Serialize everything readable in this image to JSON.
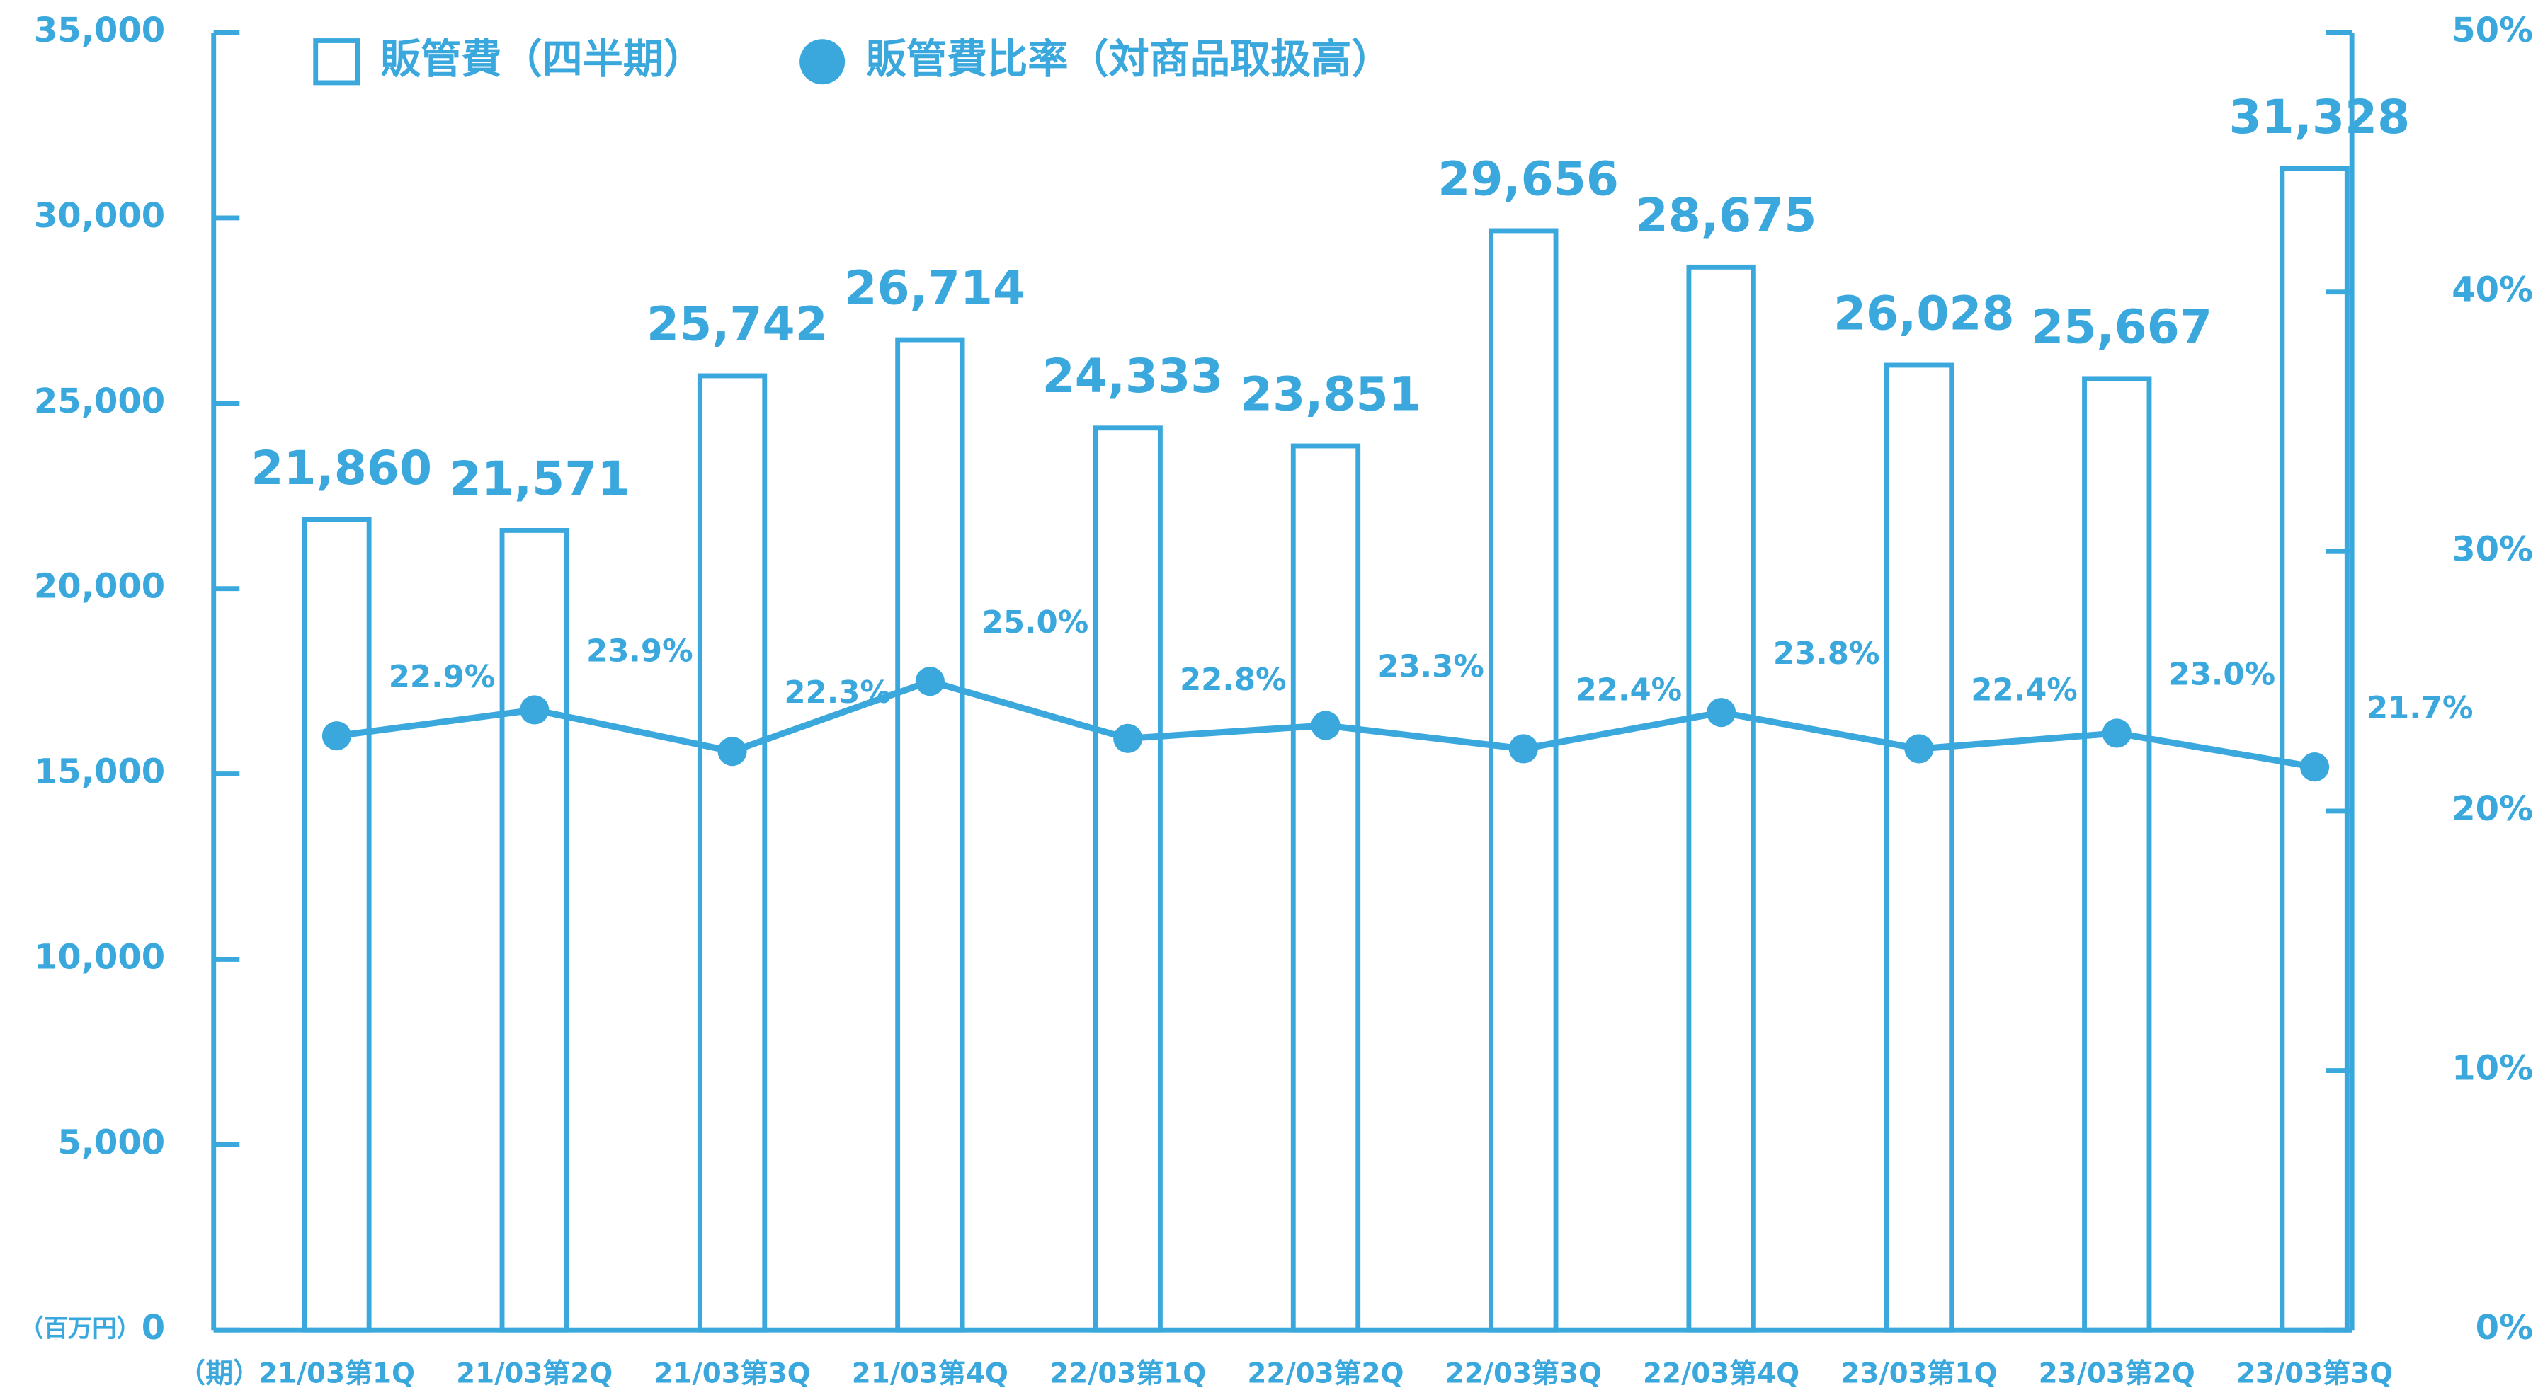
{
  "chart_data": {
    "type": "bar",
    "x_label": "（期）",
    "y_label": "（百万円）",
    "categories": [
      "21/03第1Q",
      "21/03第2Q",
      "21/03第3Q",
      "21/03第4Q",
      "22/03第1Q",
      "22/03第2Q",
      "22/03第3Q",
      "22/03第4Q",
      "23/03第1Q",
      "23/03第2Q",
      "23/03第3Q"
    ],
    "series": [
      {
        "name": "販管費（四半期）",
        "type": "bar",
        "color": "#3aa8dc",
        "values": [
          21860,
          21571,
          25742,
          26714,
          24333,
          23851,
          29656,
          28675,
          26028,
          25667,
          31328
        ],
        "value_labels": [
          "21,860",
          "21,571",
          "25,742",
          "26,714",
          "24,333",
          "23,851",
          "29,656",
          "28,675",
          "26,028",
          "25,667",
          "31,328"
        ]
      },
      {
        "name": "販管費比率（対商品取扱高）",
        "type": "line",
        "axis": "y2",
        "color": "#3aa8dc",
        "values": [
          22.9,
          23.9,
          22.3,
          25.0,
          22.8,
          23.3,
          22.4,
          23.8,
          22.4,
          23.0,
          21.7
        ],
        "value_labels": [
          "22.9%",
          "23.9%",
          "22.3%",
          "25.0%",
          "22.8%",
          "23.3%",
          "22.4%",
          "23.8%",
          "22.4%",
          "23.0%",
          "21.7%"
        ]
      }
    ],
    "ylim": [
      0,
      35000
    ],
    "yticks": [
      0,
      {
        "value": 5000,
        "label": "5,000"
      },
      {
        "value": 10000,
        "label": "10,000"
      },
      {
        "value": 15000,
        "label": "15,000"
      },
      {
        "value": 20000,
        "label": "20,000"
      },
      {
        "value": 25000,
        "label": "25,000"
      },
      {
        "value": 30000,
        "label": "30,000"
      },
      {
        "value": 35000,
        "label": "35,000"
      }
    ],
    "y2lim": [
      0,
      50
    ],
    "y2ticks": [
      {
        "value": 0,
        "label": "0%"
      },
      {
        "value": 10,
        "label": "10%"
      },
      {
        "value": 20,
        "label": "20%"
      },
      {
        "value": 30,
        "label": "30%"
      },
      {
        "value": 40,
        "label": "40%"
      },
      {
        "value": 50,
        "label": "50%"
      }
    ]
  }
}
